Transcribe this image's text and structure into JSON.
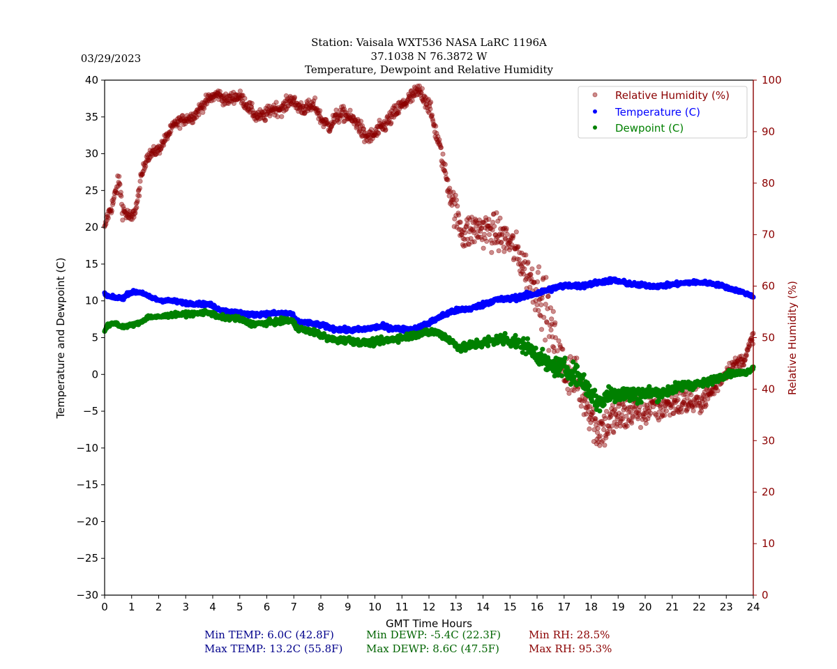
{
  "header": {
    "date": "03/29/2023",
    "station_line": "Station:  Vaisala WXT536  NASA LaRC 1196A",
    "coords_line": "37.1038 N 76.3872 W",
    "subtitle_line": "Temperature, Dewpoint and Relative Humidity"
  },
  "colors": {
    "title": "#006400",
    "temperature": "#0000ff",
    "dewpoint": "#008000",
    "rh": "#8b0000",
    "stats_temp": "#00008b",
    "stats_dewp": "#006400",
    "stats_rh": "#8b0000"
  },
  "stats": {
    "min_temp": "Min TEMP: 6.0C (42.8F)",
    "max_temp": "Max TEMP: 13.2C (55.8F)",
    "min_dewp": "Min DEWP: -5.4C (22.3F)",
    "max_dewp": "Max DEWP: 8.6C (47.5F)",
    "min_rh": "Min RH: 28.5%",
    "max_rh": "Max RH: 95.3%"
  },
  "chart_data": {
    "type": "scatter",
    "title": "Temperature, Dewpoint and Relative Humidity",
    "xlabel": "GMT Time Hours",
    "ylabel": "Temperature and Dewpoint (C)",
    "y2label": "Relative Humidity (%)",
    "xlim": [
      0,
      24
    ],
    "ylim": [
      -30,
      40
    ],
    "y2lim": [
      0,
      100
    ],
    "x_ticks": [
      "0",
      "1",
      "2",
      "3",
      "4",
      "5",
      "6",
      "7",
      "8",
      "9",
      "10",
      "11",
      "12",
      "13",
      "14",
      "15",
      "16",
      "17",
      "18",
      "19",
      "20",
      "21",
      "22",
      "23",
      "24"
    ],
    "y_ticks": [
      "40",
      "35",
      "30",
      "25",
      "20",
      "15",
      "10",
      "5",
      "0",
      "−5",
      "−10",
      "−15",
      "−20",
      "−25",
      "−30"
    ],
    "y2_ticks": [
      "100",
      "90",
      "80",
      "70",
      "60",
      "50",
      "40",
      "30",
      "20",
      "10",
      "0"
    ],
    "grid": false,
    "legend": {
      "placement": "top-right",
      "entries": [
        {
          "label": "Relative Humidity (%)",
          "series": "rh"
        },
        {
          "label": "Temperature (C)",
          "series": "temperature"
        },
        {
          "label": "Dewpoint (C)",
          "series": "dewpoint"
        }
      ]
    },
    "series": [
      {
        "name": "Relative Humidity (%)",
        "key": "rh",
        "axis": "right",
        "points": [
          [
            0.0,
            71.0
          ],
          [
            0.1,
            73.5
          ],
          [
            0.3,
            76.0
          ],
          [
            0.45,
            79.0
          ],
          [
            0.55,
            80.5
          ],
          [
            0.65,
            75.0
          ],
          [
            0.8,
            74.0
          ],
          [
            1.0,
            73.0
          ],
          [
            1.2,
            76.0
          ],
          [
            1.35,
            81.0
          ],
          [
            1.55,
            85.0
          ],
          [
            1.8,
            86.0
          ],
          [
            2.0,
            86.5
          ],
          [
            2.3,
            89.0
          ],
          [
            2.6,
            91.5
          ],
          [
            3.0,
            92.5
          ],
          [
            3.3,
            93.0
          ],
          [
            3.6,
            95.0
          ],
          [
            3.9,
            96.5
          ],
          [
            4.2,
            97.3
          ],
          [
            4.5,
            96.0
          ],
          [
            4.8,
            96.8
          ],
          [
            5.0,
            96.8
          ],
          [
            5.3,
            95.0
          ],
          [
            5.6,
            93.0
          ],
          [
            5.9,
            93.0
          ],
          [
            6.2,
            94.5
          ],
          [
            6.6,
            94.5
          ],
          [
            6.9,
            96.5
          ],
          [
            7.1,
            95.0
          ],
          [
            7.4,
            94.5
          ],
          [
            7.8,
            95.0
          ],
          [
            8.0,
            92.5
          ],
          [
            8.3,
            91.0
          ],
          [
            8.6,
            93.0
          ],
          [
            8.9,
            93.5
          ],
          [
            9.1,
            92.5
          ],
          [
            9.4,
            91.5
          ],
          [
            9.6,
            89.0
          ],
          [
            9.9,
            89.0
          ],
          [
            10.1,
            90.0
          ],
          [
            10.4,
            91.5
          ],
          [
            10.8,
            94.0
          ],
          [
            11.2,
            96.0
          ],
          [
            11.6,
            97.8
          ],
          [
            11.8,
            97.0
          ],
          [
            12.0,
            95.0
          ],
          [
            12.2,
            91.0
          ],
          [
            12.4,
            87.0
          ],
          [
            12.6,
            82.0
          ],
          [
            12.8,
            78.0
          ],
          [
            13.0,
            74.0
          ],
          [
            13.3,
            70.0
          ],
          [
            13.6,
            71.0
          ],
          [
            14.0,
            71.0
          ],
          [
            14.4,
            70.5
          ],
          [
            14.8,
            69.5
          ],
          [
            15.2,
            67.0
          ],
          [
            15.5,
            64.0
          ],
          [
            15.8,
            61.0
          ],
          [
            16.1,
            59.0
          ],
          [
            16.4,
            55.0
          ],
          [
            16.6,
            50.0
          ],
          [
            16.8,
            46.0
          ],
          [
            17.0,
            44.0
          ],
          [
            17.3,
            43.0
          ],
          [
            17.6,
            40.0
          ],
          [
            17.9,
            37.0
          ],
          [
            18.2,
            32.0
          ],
          [
            18.5,
            32.5
          ],
          [
            18.8,
            34.0
          ],
          [
            19.2,
            35.0
          ],
          [
            19.6,
            36.0
          ],
          [
            20.0,
            36.0
          ],
          [
            20.4,
            36.5
          ],
          [
            20.8,
            37.0
          ],
          [
            21.2,
            37.5
          ],
          [
            21.6,
            37.5
          ],
          [
            22.0,
            37.5
          ],
          [
            22.4,
            39.0
          ],
          [
            22.8,
            42.0
          ],
          [
            23.1,
            44.0
          ],
          [
            23.4,
            45.0
          ],
          [
            23.7,
            46.0
          ],
          [
            24.0,
            50.5
          ]
        ],
        "jitter": [
          [
            0.0,
            0.8
          ],
          [
            0.5,
            1.2
          ],
          [
            1.6,
            0.7
          ],
          [
            12.5,
            1.2
          ],
          [
            13.0,
            2.5
          ],
          [
            15.5,
            2.5
          ],
          [
            16.2,
            4.0
          ],
          [
            17.5,
            3.0
          ],
          [
            18.0,
            3.0
          ],
          [
            21.5,
            2.0
          ],
          [
            23.0,
            1.0
          ],
          [
            24.0,
            0.8
          ]
        ]
      },
      {
        "name": "Temperature (C)",
        "key": "temperature",
        "axis": "left",
        "points": [
          [
            0.0,
            10.9
          ],
          [
            0.2,
            10.5
          ],
          [
            0.5,
            10.4
          ],
          [
            0.7,
            10.4
          ],
          [
            0.9,
            11.1
          ],
          [
            1.2,
            11.2
          ],
          [
            1.4,
            11.1
          ],
          [
            1.6,
            10.6
          ],
          [
            2.0,
            10.1
          ],
          [
            2.5,
            10.0
          ],
          [
            3.0,
            9.7
          ],
          [
            3.5,
            9.6
          ],
          [
            3.9,
            9.5
          ],
          [
            4.2,
            8.9
          ],
          [
            4.6,
            8.5
          ],
          [
            5.0,
            8.4
          ],
          [
            5.4,
            8.1
          ],
          [
            5.8,
            8.2
          ],
          [
            6.3,
            8.3
          ],
          [
            6.9,
            8.3
          ],
          [
            7.1,
            7.2
          ],
          [
            7.5,
            7.0
          ],
          [
            8.0,
            6.7
          ],
          [
            8.5,
            6.2
          ],
          [
            9.0,
            6.0
          ],
          [
            9.5,
            6.1
          ],
          [
            10.0,
            6.4
          ],
          [
            10.3,
            6.5
          ],
          [
            10.8,
            6.2
          ],
          [
            11.2,
            6.1
          ],
          [
            11.6,
            6.3
          ],
          [
            12.0,
            7.0
          ],
          [
            12.4,
            7.8
          ],
          [
            12.8,
            8.5
          ],
          [
            13.2,
            8.8
          ],
          [
            13.6,
            9.0
          ],
          [
            14.0,
            9.5
          ],
          [
            14.4,
            10.1
          ],
          [
            14.8,
            10.2
          ],
          [
            15.2,
            10.4
          ],
          [
            15.6,
            10.7
          ],
          [
            16.0,
            11.0
          ],
          [
            16.4,
            11.5
          ],
          [
            16.8,
            11.9
          ],
          [
            17.2,
            12.1
          ],
          [
            17.6,
            12.0
          ],
          [
            18.0,
            12.3
          ],
          [
            18.4,
            12.6
          ],
          [
            18.8,
            12.8
          ],
          [
            19.2,
            12.5
          ],
          [
            19.6,
            12.2
          ],
          [
            20.0,
            12.1
          ],
          [
            20.4,
            12.0
          ],
          [
            20.8,
            12.1
          ],
          [
            21.2,
            12.3
          ],
          [
            21.6,
            12.5
          ],
          [
            22.0,
            12.5
          ],
          [
            22.4,
            12.4
          ],
          [
            22.8,
            12.1
          ],
          [
            23.2,
            11.6
          ],
          [
            23.6,
            11.2
          ],
          [
            24.0,
            10.6
          ]
        ],
        "jitter": [
          [
            0.0,
            0.15
          ],
          [
            16.0,
            0.25
          ],
          [
            24.0,
            0.15
          ]
        ]
      },
      {
        "name": "Dewpoint (C)",
        "key": "dewpoint",
        "axis": "left",
        "points": [
          [
            0.0,
            5.9
          ],
          [
            0.1,
            6.6
          ],
          [
            0.4,
            7.0
          ],
          [
            0.6,
            6.5
          ],
          [
            0.9,
            6.6
          ],
          [
            1.3,
            7.0
          ],
          [
            1.6,
            7.8
          ],
          [
            2.0,
            7.8
          ],
          [
            2.5,
            8.1
          ],
          [
            3.0,
            8.2
          ],
          [
            3.5,
            8.3
          ],
          [
            3.8,
            8.5
          ],
          [
            4.2,
            7.8
          ],
          [
            4.6,
            7.7
          ],
          [
            5.0,
            7.5
          ],
          [
            5.4,
            6.9
          ],
          [
            5.8,
            6.9
          ],
          [
            6.2,
            7.1
          ],
          [
            6.6,
            7.2
          ],
          [
            6.9,
            7.4
          ],
          [
            7.1,
            6.4
          ],
          [
            7.4,
            6.0
          ],
          [
            7.8,
            5.7
          ],
          [
            8.2,
            5.0
          ],
          [
            8.6,
            4.6
          ],
          [
            9.0,
            4.7
          ],
          [
            9.5,
            4.3
          ],
          [
            9.9,
            4.3
          ],
          [
            10.3,
            4.6
          ],
          [
            10.8,
            4.9
          ],
          [
            11.3,
            5.2
          ],
          [
            11.7,
            5.6
          ],
          [
            12.1,
            5.8
          ],
          [
            12.4,
            5.6
          ],
          [
            12.8,
            4.6
          ],
          [
            13.2,
            3.5
          ],
          [
            13.6,
            4.0
          ],
          [
            14.0,
            4.3
          ],
          [
            14.4,
            4.6
          ],
          [
            14.8,
            4.9
          ],
          [
            15.2,
            4.4
          ],
          [
            15.6,
            3.8
          ],
          [
            16.0,
            2.8
          ],
          [
            16.4,
            1.2
          ],
          [
            16.8,
            1.0
          ],
          [
            17.2,
            0.5
          ],
          [
            17.6,
            -0.5
          ],
          [
            18.0,
            -2.5
          ],
          [
            18.3,
            -4.0
          ],
          [
            18.6,
            -2.8
          ],
          [
            19.0,
            -2.5
          ],
          [
            19.4,
            -2.7
          ],
          [
            19.8,
            -2.8
          ],
          [
            20.2,
            -2.5
          ],
          [
            20.6,
            -2.6
          ],
          [
            21.0,
            -2.0
          ],
          [
            21.4,
            -1.5
          ],
          [
            21.8,
            -1.4
          ],
          [
            22.2,
            -1.2
          ],
          [
            22.6,
            -0.6
          ],
          [
            23.0,
            0.0
          ],
          [
            23.4,
            0.2
          ],
          [
            23.7,
            0.2
          ],
          [
            24.0,
            0.9
          ]
        ],
        "jitter": [
          [
            0.0,
            0.15
          ],
          [
            13.0,
            0.35
          ],
          [
            16.0,
            0.8
          ],
          [
            17.5,
            1.0
          ],
          [
            19.0,
            0.9
          ],
          [
            21.0,
            0.5
          ],
          [
            24.0,
            0.2
          ]
        ]
      }
    ]
  }
}
